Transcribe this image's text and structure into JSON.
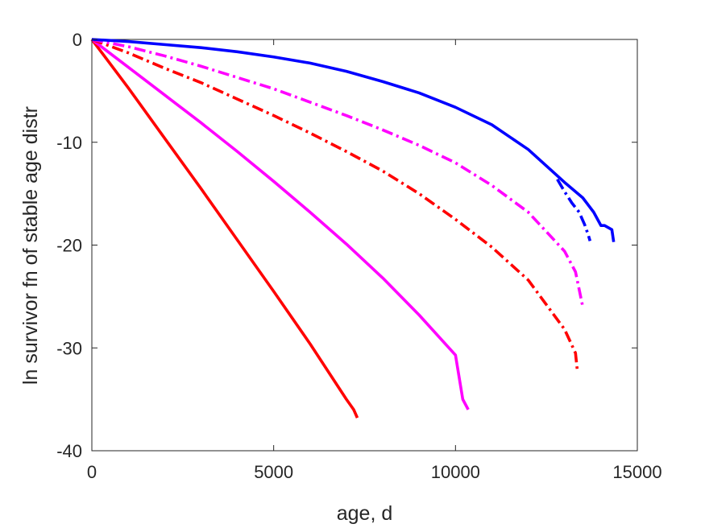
{
  "chart_data": {
    "type": "line",
    "title": "",
    "xlabel": "age, d",
    "ylabel": "ln survivor fn of stable age distr",
    "xlim": [
      0,
      15000
    ],
    "ylim": [
      -40,
      0
    ],
    "xticks": [
      0,
      5000,
      10000,
      15000
    ],
    "yticks": [
      0,
      -10,
      -20,
      -30,
      -40
    ],
    "xtick_labels": [
      "0",
      "5000",
      "10000",
      "15000"
    ],
    "ytick_labels": [
      "0",
      "-10",
      "-20",
      "-30",
      "-40"
    ],
    "grid": false,
    "legend": "none",
    "series": [
      {
        "color": "#ff0000",
        "style": "solid",
        "x": [
          0,
          1000,
          2000,
          3000,
          4000,
          5000,
          6000,
          7000,
          7100,
          7200,
          7300
        ],
        "y": [
          0,
          -4.7,
          -9.6,
          -14.5,
          -19.5,
          -24.5,
          -29.6,
          -35.0,
          -35.5,
          -36.0,
          -36.8
        ]
      },
      {
        "color": "#ff00ff",
        "style": "solid",
        "x": [
          0,
          1000,
          2000,
          3000,
          4000,
          5000,
          6000,
          7000,
          8000,
          9000,
          10000,
          10200,
          10350
        ],
        "y": [
          0,
          -2.7,
          -5.4,
          -8.1,
          -10.9,
          -13.8,
          -16.8,
          -19.9,
          -23.2,
          -26.8,
          -30.7,
          -35.0,
          -36.0
        ]
      },
      {
        "color": "#ff0000",
        "style": "dashdot",
        "x": [
          0,
          1000,
          2000,
          3000,
          4000,
          5000,
          6000,
          7000,
          8000,
          9000,
          10000,
          11000,
          12000,
          13000,
          13300,
          13350
        ],
        "y": [
          0,
          -1.3,
          -2.8,
          -4.2,
          -5.8,
          -7.4,
          -9.1,
          -10.9,
          -12.8,
          -15.0,
          -17.5,
          -20.2,
          -23.4,
          -28.2,
          -30.5,
          -32.2
        ]
      },
      {
        "color": "#ff00ff",
        "style": "dashdot",
        "x": [
          0,
          1000,
          2000,
          3000,
          4000,
          5000,
          6000,
          7000,
          8000,
          9000,
          10000,
          11000,
          12000,
          13000,
          13300,
          13500
        ],
        "y": [
          0,
          -0.7,
          -1.6,
          -2.6,
          -3.7,
          -4.8,
          -6.1,
          -7.4,
          -8.8,
          -10.3,
          -12.0,
          -14.2,
          -16.8,
          -20.6,
          -22.6,
          -26.0
        ]
      },
      {
        "color": "#0000ff",
        "style": "dashdot",
        "x": [
          12800,
          13000,
          13200,
          13400,
          13550,
          13650,
          13700
        ],
        "y": [
          -13.6,
          -14.8,
          -15.9,
          -16.8,
          -18.0,
          -19.0,
          -19.6
        ]
      },
      {
        "color": "#0000ff",
        "style": "solid",
        "x": [
          0,
          1000,
          2000,
          3000,
          4000,
          5000,
          6000,
          7000,
          8000,
          9000,
          10000,
          11000,
          12000,
          13000,
          13500,
          13800,
          14000,
          14100,
          14300,
          14350
        ],
        "y": [
          0,
          -0.2,
          -0.5,
          -0.8,
          -1.2,
          -1.7,
          -2.3,
          -3.1,
          -4.1,
          -5.2,
          -6.6,
          -8.3,
          -10.7,
          -13.9,
          -15.4,
          -16.8,
          -18.1,
          -18.1,
          -18.5,
          -19.7
        ]
      }
    ]
  }
}
